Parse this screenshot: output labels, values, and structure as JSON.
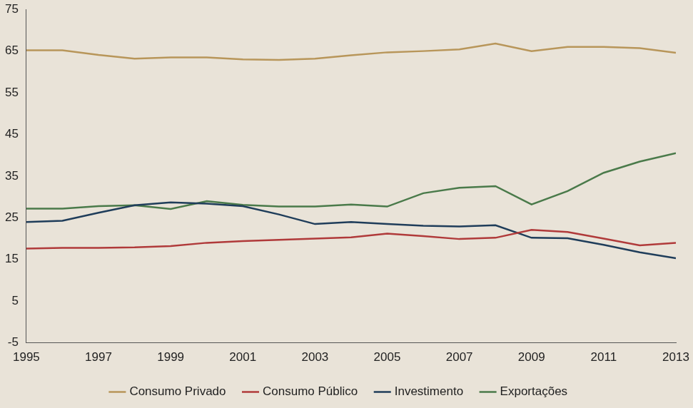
{
  "chart_data": {
    "type": "line",
    "x": [
      1995,
      1996,
      1997,
      1998,
      1999,
      2000,
      2001,
      2002,
      2003,
      2004,
      2005,
      2006,
      2007,
      2008,
      2009,
      2010,
      2011,
      2012,
      2013
    ],
    "series": [
      {
        "name": "Consumo Privado",
        "color": "#b8965a",
        "values": [
          65.2,
          65.2,
          64.1,
          63.2,
          63.5,
          63.5,
          63.0,
          62.9,
          63.2,
          64.0,
          64.7,
          65.0,
          65.4,
          66.8,
          65.0,
          66.0,
          66.0,
          65.7,
          64.6
        ]
      },
      {
        "name": "Consumo Público",
        "color": "#b03a3a",
        "values": [
          17.6,
          17.8,
          17.8,
          17.9,
          18.2,
          19.0,
          19.4,
          19.7,
          20.0,
          20.3,
          21.2,
          20.6,
          19.9,
          20.2,
          22.1,
          21.6,
          20.0,
          18.4,
          19.0
        ]
      },
      {
        "name": "Investimento",
        "color": "#1f3d5a",
        "values": [
          24.0,
          24.3,
          26.2,
          28.0,
          28.7,
          28.4,
          27.8,
          25.8,
          23.5,
          24.0,
          23.5,
          23.1,
          22.9,
          23.2,
          20.2,
          20.1,
          18.5,
          16.7,
          15.3
        ]
      },
      {
        "name": "Exportações",
        "color": "#4a7a4a",
        "values": [
          27.2,
          27.2,
          27.8,
          28.0,
          27.1,
          29.0,
          28.1,
          27.7,
          27.7,
          28.2,
          27.7,
          30.9,
          32.2,
          32.6,
          28.2,
          31.4,
          35.8,
          38.5,
          40.5
        ]
      }
    ],
    "xlim": [
      1995,
      2013
    ],
    "xticks": [
      1995,
      1997,
      1999,
      2001,
      2003,
      2005,
      2007,
      2009,
      2011,
      2013
    ],
    "ylim": [
      -5,
      75
    ],
    "yticks": [
      -5,
      5,
      15,
      25,
      35,
      45,
      55,
      65,
      75
    ],
    "grid": false,
    "legend": "bottom"
  }
}
